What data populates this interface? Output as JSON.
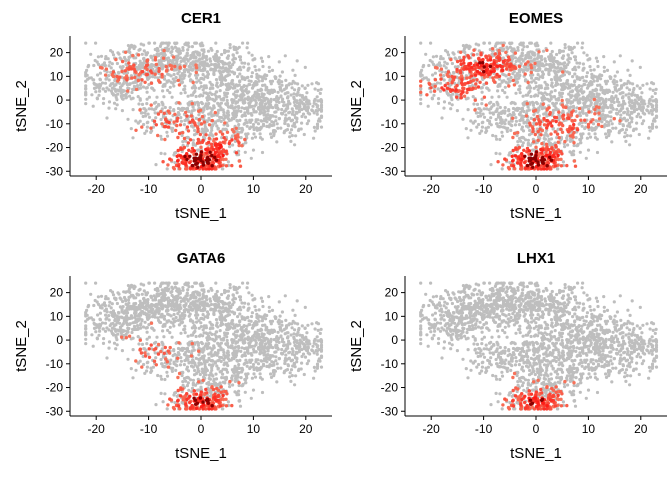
{
  "chart_data": [
    {
      "type": "scatter",
      "title": "CER1",
      "xlabel": "tSNE_1",
      "ylabel": "tSNE_2",
      "xlim": [
        -25,
        25
      ],
      "ylim": [
        -32,
        27
      ],
      "xticks": [
        -20,
        -10,
        0,
        10,
        20
      ],
      "yticks": [
        -30,
        -20,
        -10,
        0,
        10,
        20
      ],
      "grid": false,
      "legend": "none",
      "color_low": "#bebebe",
      "color_high": "#ff0000",
      "expression_hotspots": [
        {
          "x": 0,
          "y": -25,
          "level": 0.95
        },
        {
          "x": 3,
          "y": -20,
          "level": 0.6
        },
        {
          "x": -5,
          "y": -10,
          "level": 0.35
        },
        {
          "x": -12,
          "y": 12,
          "level": 0.3
        }
      ]
    },
    {
      "type": "scatter",
      "title": "EOMES",
      "xlabel": "tSNE_1",
      "ylabel": "tSNE_2",
      "xlim": [
        -25,
        25
      ],
      "ylim": [
        -32,
        27
      ],
      "xticks": [
        -20,
        -10,
        0,
        10,
        20
      ],
      "yticks": [
        -30,
        -20,
        -10,
        0,
        10,
        20
      ],
      "grid": false,
      "legend": "none",
      "color_low": "#bebebe",
      "color_high": "#ff0000",
      "expression_hotspots": [
        {
          "x": 0,
          "y": -25,
          "level": 0.9
        },
        {
          "x": -10,
          "y": 14,
          "level": 0.65
        },
        {
          "x": -15,
          "y": 5,
          "level": 0.5
        },
        {
          "x": 5,
          "y": -10,
          "level": 0.45
        }
      ]
    },
    {
      "type": "scatter",
      "title": "GATA6",
      "xlabel": "tSNE_1",
      "ylabel": "tSNE_2",
      "xlim": [
        -25,
        25
      ],
      "ylim": [
        -32,
        27
      ],
      "xticks": [
        -20,
        -10,
        0,
        10,
        20
      ],
      "yticks": [
        -30,
        -20,
        -10,
        0,
        10,
        20
      ],
      "grid": false,
      "legend": "none",
      "color_low": "#bebebe",
      "color_high": "#ff0000",
      "expression_hotspots": [
        {
          "x": 0,
          "y": -26,
          "level": 0.7
        },
        {
          "x": -10,
          "y": -5,
          "level": 0.25
        }
      ]
    },
    {
      "type": "scatter",
      "title": "LHX1",
      "xlabel": "tSNE_1",
      "ylabel": "tSNE_2",
      "xlim": [
        -25,
        25
      ],
      "ylim": [
        -32,
        27
      ],
      "xticks": [
        -20,
        -10,
        0,
        10,
        20
      ],
      "yticks": [
        -30,
        -20,
        -10,
        0,
        10,
        20
      ],
      "grid": false,
      "legend": "none",
      "color_low": "#bebebe",
      "color_high": "#ff0000",
      "expression_hotspots": [
        {
          "x": 0,
          "y": -26,
          "level": 0.65
        }
      ]
    }
  ]
}
